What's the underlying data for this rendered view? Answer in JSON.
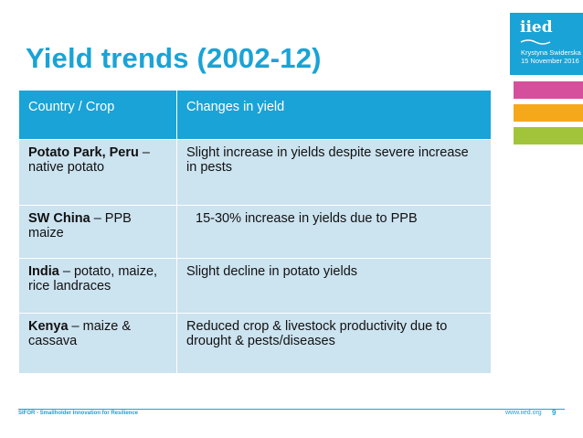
{
  "slide": {
    "title": "Yield trends (2002-12)"
  },
  "logo": {
    "text": "iied",
    "author": "Krystyna Swiderska",
    "date": "15 November 2016",
    "colors": {
      "logo_bg": "#1aa3d6",
      "pink": "#d64f9c",
      "orange": "#f6a81b",
      "green": "#a2c43b"
    }
  },
  "table": {
    "headers": [
      "Country / Crop",
      "Changes in yield"
    ],
    "rows": [
      {
        "country_bold": "Potato Park, Peru",
        "country_rest": " – native potato",
        "change": "Slight increase in yields despite severe increase in pests"
      },
      {
        "country_bold": "SW China",
        "country_rest": " – PPB maize",
        "change": "15-30% increase in yields due to PPB"
      },
      {
        "country_bold": "India",
        "country_rest": " – potato, maize, rice landraces",
        "change": "Slight decline in potato yields"
      },
      {
        "country_bold": "Kenya",
        "country_rest": " – maize & cassava",
        "change": "Reduced crop & livestock productivity due to drought & pests/diseases"
      }
    ],
    "colors": {
      "header_bg": "#1aa3d6",
      "cell_bg": "#cce3f0"
    }
  },
  "footer": {
    "left": "SIFOR - Smallholder Innovation for Resilience",
    "url": "www.iied.org",
    "page": "9"
  }
}
